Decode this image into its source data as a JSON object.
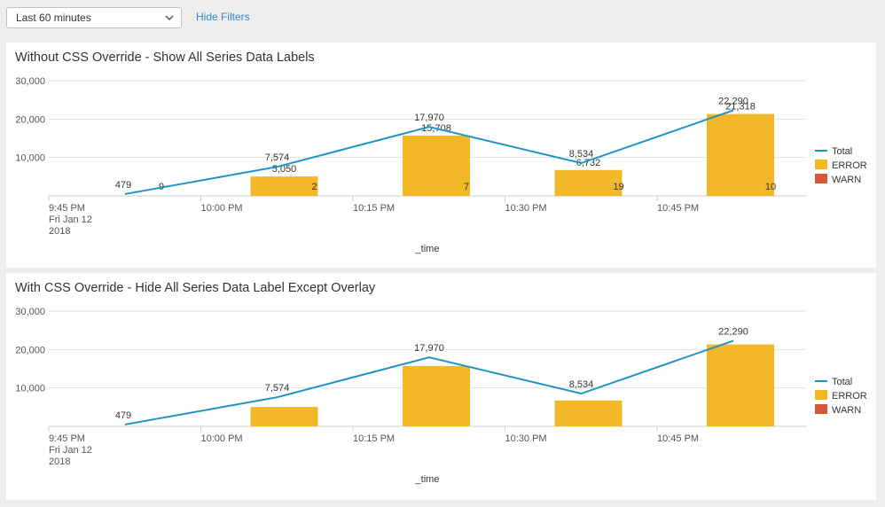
{
  "filters": {
    "time_range": "Last 60 minutes",
    "hide_filters_label": "Hide Filters"
  },
  "colors": {
    "total": "#1e93c6",
    "error": "#f2b827",
    "warn": "#d6563c",
    "grid": "#e1e1e1",
    "axis": "#cccccc"
  },
  "legend": [
    {
      "key": "total",
      "label": "Total",
      "style": "line"
    },
    {
      "key": "error",
      "label": "ERROR",
      "style": "box"
    },
    {
      "key": "warn",
      "label": "WARN",
      "style": "box"
    }
  ],
  "x_ticks": [
    {
      "lines": [
        "9:45 PM",
        "Fri Jan 12",
        "2018"
      ],
      "t": 0
    },
    {
      "lines": [
        "10:00 PM"
      ],
      "t": 15
    },
    {
      "lines": [
        "10:15 PM"
      ],
      "t": 30
    },
    {
      "lines": [
        "10:30 PM"
      ],
      "t": 45
    },
    {
      "lines": [
        "10:45 PM"
      ],
      "t": 60
    }
  ],
  "chart_data": [
    {
      "type": "bar",
      "title": "Without CSS Override - Show All Series Data Labels",
      "xlabel": "_time",
      "ylabel": "",
      "ylim": [
        0,
        30000
      ],
      "yticks": [
        {
          "v": 10000,
          "label": "10,000"
        },
        {
          "v": 20000,
          "label": "20,000"
        },
        {
          "v": 30000,
          "label": "30,000"
        }
      ],
      "buckets": 5,
      "categories": [
        "9:45 PM",
        "10:00 PM",
        "10:15 PM",
        "10:30 PM",
        "10:45 PM"
      ],
      "series": [
        {
          "name": "ERROR",
          "type": "column",
          "values": [
            0,
            5050,
            15708,
            6732,
            21318
          ],
          "labels": [
            "",
            "5,050",
            "15,708",
            "6,732",
            "21,318"
          ]
        },
        {
          "name": "WARN",
          "type": "column",
          "values": [
            9,
            2,
            7,
            19,
            10
          ],
          "labels": [
            "9",
            "2",
            "7",
            "19",
            "10"
          ]
        },
        {
          "name": "Total",
          "type": "line",
          "values": [
            479,
            7574,
            17970,
            8534,
            22290
          ],
          "labels": [
            "479",
            "7,574",
            "17,970",
            "8,534",
            "22,290"
          ]
        }
      ],
      "show_all_labels": true,
      "grid": true,
      "legend_position": "right"
    },
    {
      "type": "bar",
      "title": "With CSS Override - Hide All Series Data Label Except Overlay",
      "xlabel": "_time",
      "ylabel": "",
      "ylim": [
        0,
        30000
      ],
      "yticks": [
        {
          "v": 10000,
          "label": "10,000"
        },
        {
          "v": 20000,
          "label": "20,000"
        },
        {
          "v": 30000,
          "label": "30,000"
        }
      ],
      "buckets": 5,
      "categories": [
        "9:45 PM",
        "10:00 PM",
        "10:15 PM",
        "10:30 PM",
        "10:45 PM"
      ],
      "series": [
        {
          "name": "ERROR",
          "type": "column",
          "values": [
            0,
            5050,
            15708,
            6732,
            21318
          ],
          "labels": [
            "",
            "",
            "",
            "",
            ""
          ]
        },
        {
          "name": "WARN",
          "type": "column",
          "values": [
            9,
            2,
            7,
            19,
            10
          ],
          "labels": [
            "",
            "",
            "",
            "",
            ""
          ]
        },
        {
          "name": "Total",
          "type": "line",
          "values": [
            479,
            7574,
            17970,
            8534,
            22290
          ],
          "labels": [
            "479",
            "7,574",
            "17,970",
            "8,534",
            "22,290"
          ]
        }
      ],
      "show_all_labels": false,
      "grid": true,
      "legend_position": "right"
    }
  ]
}
